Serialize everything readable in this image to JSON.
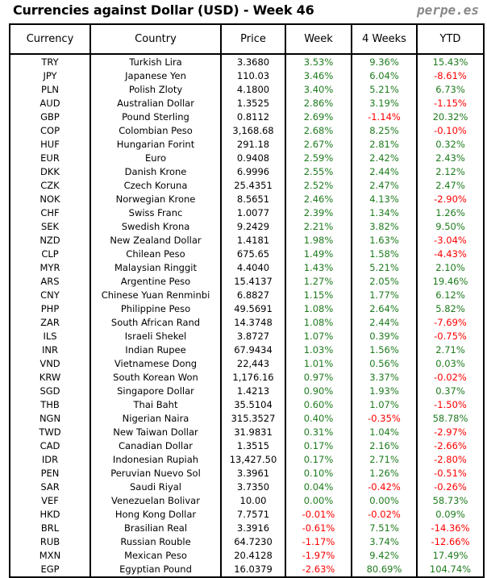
{
  "title": "Currencies against Dollar (USD) - Week 46",
  "brand": "perpe.es",
  "colors": {
    "positive": "#1e7b1e",
    "negative": "#ff0000"
  },
  "columns": [
    "Currency",
    "Country",
    "Price",
    "Week",
    "4 Weeks",
    "YTD"
  ],
  "rows": [
    [
      "TRY",
      "Turkish Lira",
      "3.3680",
      "3.53%",
      "9.36%",
      "15.43%"
    ],
    [
      "JPY",
      "Japanese Yen",
      "110.03",
      "3.46%",
      "6.04%",
      "-8.61%"
    ],
    [
      "PLN",
      "Polish Zloty",
      "4.1800",
      "3.40%",
      "5.21%",
      "6.73%"
    ],
    [
      "AUD",
      "Australian Dollar",
      "1.3525",
      "2.86%",
      "3.19%",
      "-1.15%"
    ],
    [
      "GBP",
      "Pound Sterling",
      "0.8112",
      "2.69%",
      "-1.14%",
      "20.32%"
    ],
    [
      "COP",
      "Colombian Peso",
      "3,168.68",
      "2.68%",
      "8.25%",
      "-0.10%"
    ],
    [
      "HUF",
      "Hungarian Forint",
      "291.18",
      "2.67%",
      "2.81%",
      "0.32%"
    ],
    [
      "EUR",
      "Euro",
      "0.9408",
      "2.59%",
      "2.42%",
      "2.43%"
    ],
    [
      "DKK",
      "Danish Krone",
      "6.9996",
      "2.55%",
      "2.44%",
      "2.12%"
    ],
    [
      "CZK",
      "Czech Koruna",
      "25.4351",
      "2.52%",
      "2.47%",
      "2.47%"
    ],
    [
      "NOK",
      "Norwegian Krone",
      "8.5651",
      "2.46%",
      "4.13%",
      "-2.90%"
    ],
    [
      "CHF",
      "Swiss Franc",
      "1.0077",
      "2.39%",
      "1.34%",
      "1.26%"
    ],
    [
      "SEK",
      "Swedish Krona",
      "9.2429",
      "2.21%",
      "3.82%",
      "9.50%"
    ],
    [
      "NZD",
      "New Zealand Dollar",
      "1.4181",
      "1.98%",
      "1.63%",
      "-3.04%"
    ],
    [
      "CLP",
      "Chilean Peso",
      "675.65",
      "1.49%",
      "1.58%",
      "-4.43%"
    ],
    [
      "MYR",
      "Malaysian Ringgit",
      "4.4040",
      "1.43%",
      "5.21%",
      "2.10%"
    ],
    [
      "ARS",
      "Argentine Peso",
      "15.4137",
      "1.27%",
      "2.05%",
      "19.46%"
    ],
    [
      "CNY",
      "Chinese Yuan Renminbi",
      "6.8827",
      "1.15%",
      "1.77%",
      "6.12%"
    ],
    [
      "PHP",
      "Philippine Peso",
      "49.5691",
      "1.08%",
      "2.64%",
      "5.82%"
    ],
    [
      "ZAR",
      "South African Rand",
      "14.3748",
      "1.08%",
      "2.44%",
      "-7.69%"
    ],
    [
      "ILS",
      "Israeli Shekel",
      "3.8727",
      "1.07%",
      "0.39%",
      "-0.75%"
    ],
    [
      "INR",
      "Indian Rupee",
      "67.9434",
      "1.03%",
      "1.56%",
      "2.71%"
    ],
    [
      "VND",
      "Vietnamese Dong",
      "22,443",
      "1.01%",
      "0.56%",
      "0.03%"
    ],
    [
      "KRW",
      "South Korean Won",
      "1,176.16",
      "0.97%",
      "3.37%",
      "-0.02%"
    ],
    [
      "SGD",
      "Singapore Dollar",
      "1.4213",
      "0.90%",
      "1.93%",
      "0.37%"
    ],
    [
      "THB",
      "Thai Baht",
      "35.5104",
      "0.60%",
      "1.07%",
      "-1.50%"
    ],
    [
      "NGN",
      "Nigerian Naira",
      "315.3527",
      "0.40%",
      "-0.35%",
      "58.78%"
    ],
    [
      "TWD",
      "New Taiwan Dollar",
      "31.9831",
      "0.31%",
      "1.04%",
      "-2.97%"
    ],
    [
      "CAD",
      "Canadian Dollar",
      "1.3515",
      "0.17%",
      "2.16%",
      "-2.66%"
    ],
    [
      "IDR",
      "Indonesian Rupiah",
      "13,427.50",
      "0.17%",
      "2.71%",
      "-2.80%"
    ],
    [
      "PEN",
      "Peruvian Nuevo Sol",
      "3.3961",
      "0.10%",
      "1.26%",
      "-0.51%"
    ],
    [
      "SAR",
      "Saudi Riyal",
      "3.7350",
      "0.04%",
      "-0.42%",
      "-0.26%"
    ],
    [
      "VEF",
      "Venezuelan Bolivar",
      "10.00",
      "0.00%",
      "0.00%",
      "58.73%"
    ],
    [
      "HKD",
      "Hong Kong Dollar",
      "7.7571",
      "-0.01%",
      "-0.02%",
      "0.09%"
    ],
    [
      "BRL",
      "Brasilian Real",
      "3.3916",
      "-0.61%",
      "7.51%",
      "-14.36%"
    ],
    [
      "RUB",
      "Russian Rouble",
      "64.7230",
      "-1.17%",
      "3.74%",
      "-12.66%"
    ],
    [
      "MXN",
      "Mexican Peso",
      "20.4128",
      "-1.97%",
      "9.42%",
      "17.49%"
    ],
    [
      "EGP",
      "Egyptian Pound",
      "16.0379",
      "-2.63%",
      "80.69%",
      "104.74%"
    ]
  ]
}
